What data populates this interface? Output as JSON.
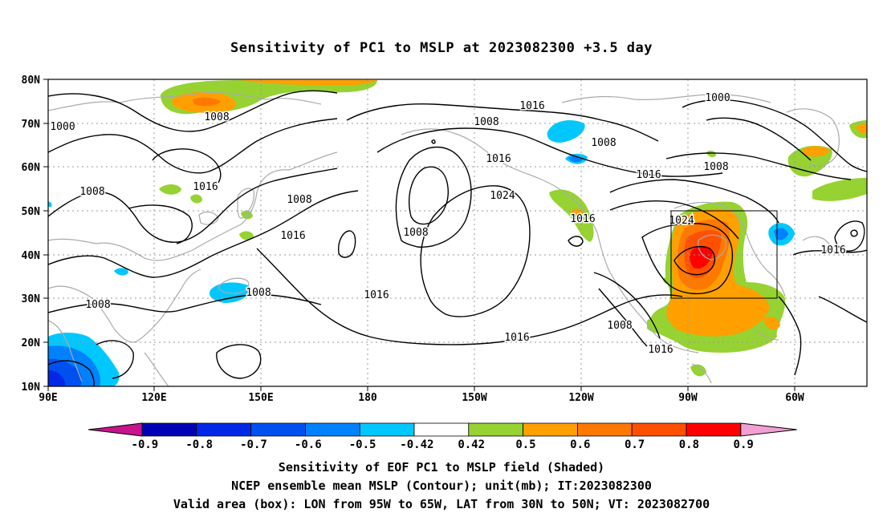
{
  "title": "Sensitivity of PC1 to MSLP at 2023082300 +3.5 day",
  "map": {
    "lat_ticks": [
      "80N",
      "70N",
      "60N",
      "50N",
      "40N",
      "30N",
      "20N",
      "10N"
    ],
    "lon_ticks": [
      "90E",
      "120E",
      "150E",
      "180",
      "150W",
      "120W",
      "90W",
      "60W"
    ],
    "grid": true,
    "contour_labels": [
      "1000",
      "1008",
      "1016",
      "1016",
      "1008",
      "1016",
      "1008",
      "1024",
      "1008",
      "1016",
      "1008",
      "1008",
      "1016",
      "1000",
      "1008",
      "1016",
      "1008",
      "1024",
      "1016",
      "1008",
      "1016"
    ],
    "box": {
      "lon": "95W to 65W",
      "lat": "30N to 50N"
    }
  },
  "colorbar": {
    "labels": [
      "-0.9",
      "-0.8",
      "-0.7",
      "-0.6",
      "-0.5",
      "-0.42",
      "0.42",
      "0.5",
      "0.6",
      "0.7",
      "0.8",
      "0.9"
    ],
    "colors": [
      "#0000b4",
      "#0028e6",
      "#0050f0",
      "#0082ff",
      "#00c8ff",
      "#ffffff",
      "#96d232",
      "#ffa000",
      "#ff7800",
      "#ff5000",
      "#ff0000",
      "#f0a0d2"
    ],
    "low_color": "#c8148c",
    "high_color": "#f0a0d2"
  },
  "captions": {
    "line1": "Sensitivity of EOF PC1 to MSLP field (Shaded)",
    "line2": "NCEP ensemble mean MSLP (Contour); unit(mb); IT:2023082300",
    "line3": "Valid area (box): LON from 95W to 65W, LAT from 30N to 50N; VT: 2023082700"
  }
}
